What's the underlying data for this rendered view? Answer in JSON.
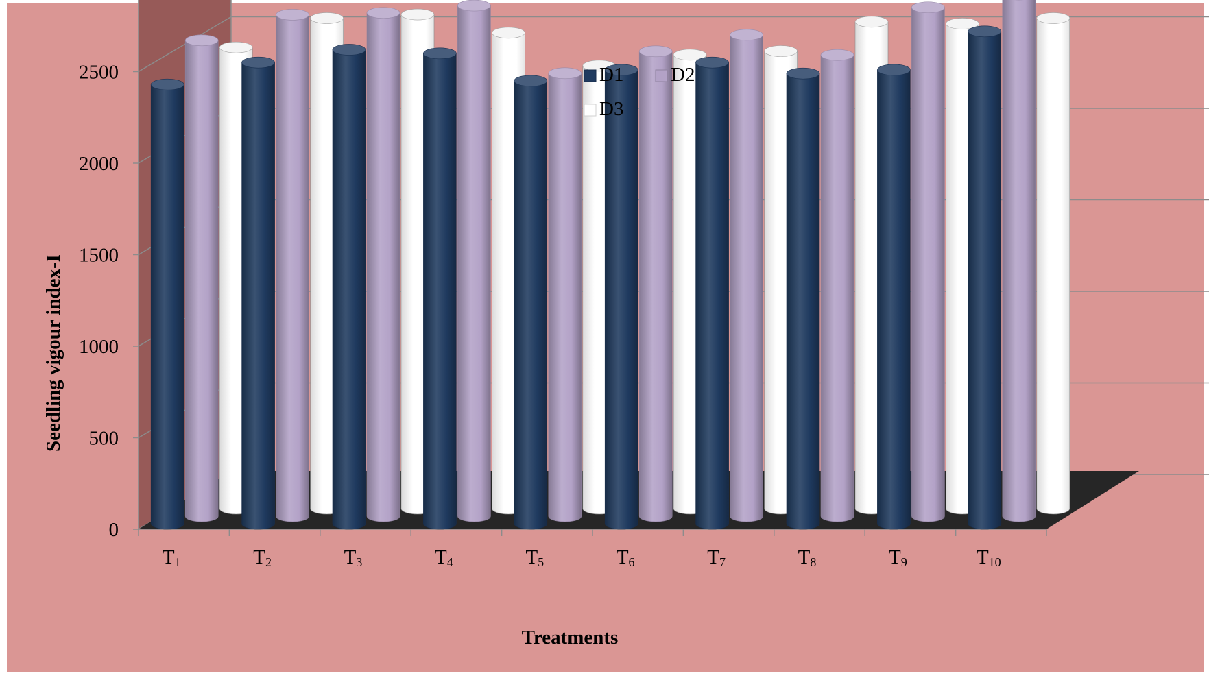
{
  "chart_data": {
    "type": "bar",
    "style": "3d-cylinder",
    "title": "",
    "xlabel": "Treatments",
    "ylabel": "Seedling vigour index-I",
    "ylim": [
      0,
      3000
    ],
    "yticks": [
      "0",
      "500",
      "1000",
      "1500",
      "2000",
      "2500",
      "3000"
    ],
    "grid": true,
    "legend_position": "top-center",
    "categories": [
      {
        "base": "T",
        "sub": "1"
      },
      {
        "base": "T",
        "sub": "2"
      },
      {
        "base": "T",
        "sub": "3"
      },
      {
        "base": "T",
        "sub": "4"
      },
      {
        "base": "T",
        "sub": "5"
      },
      {
        "base": "T",
        "sub": "6"
      },
      {
        "base": "T",
        "sub": "7"
      },
      {
        "base": "T",
        "sub": "8"
      },
      {
        "base": "T",
        "sub": "9"
      },
      {
        "base": "T",
        "sub": "10"
      }
    ],
    "series": [
      {
        "name": "D1",
        "color": "#1F3A5F",
        "values": [
          2400,
          2520,
          2590,
          2570,
          2420,
          2480,
          2520,
          2460,
          2480,
          2690
        ]
      },
      {
        "name": "D2",
        "color": "#B3A2C7",
        "values": [
          2600,
          2740,
          2750,
          2790,
          2420,
          2540,
          2630,
          2520,
          2780,
          2850
        ]
      },
      {
        "name": "D3",
        "color": "#FFFFFF",
        "values": [
          2520,
          2680,
          2700,
          2600,
          2420,
          2480,
          2500,
          2660,
          2650,
          2680
        ]
      }
    ],
    "colors": {
      "background": "#DA9694",
      "side_wall": "#975A58",
      "floor": "#262626",
      "gridline": "#8C8C8C"
    }
  }
}
